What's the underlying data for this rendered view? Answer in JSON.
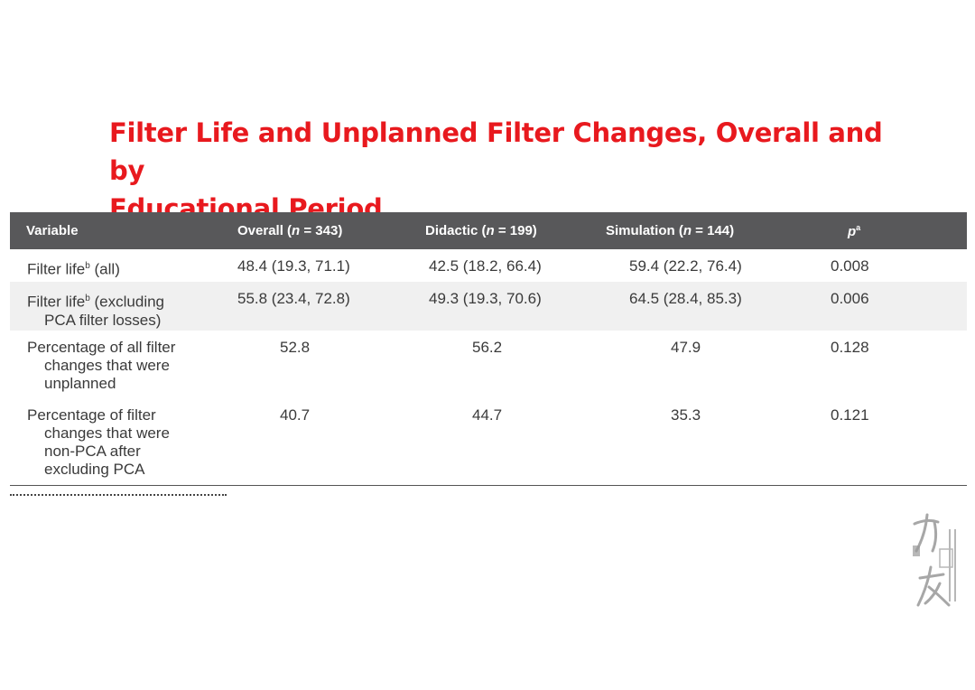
{
  "title": {
    "line1": "Filter Life and Unplanned Filter Changes, Overall and by",
    "line2": "Educational Period"
  },
  "table": {
    "headers": {
      "variable": "Variable",
      "overall_label": "Overall (",
      "overall_n": "n",
      "overall_val": " = 343)",
      "didactic_label": "Didactic (",
      "didactic_n": "n",
      "didactic_val": " = 199)",
      "simulation_label": "Simulation (",
      "simulation_n": "n",
      "simulation_val": " = 144)",
      "p": "p",
      "p_sup": "a"
    },
    "rows": [
      {
        "variable_line1": "Filter life",
        "variable_sup": "b",
        "variable_rest1": " (all)",
        "variable_line2": "",
        "variable_line3": "",
        "variable_line4": "",
        "overall": "48.4 (19.3, 71.1)",
        "didactic": "42.5 (18.2, 66.4)",
        "simulation": "59.4 (22.2, 76.4)",
        "p": "0.008"
      },
      {
        "variable_line1": "Filter life",
        "variable_sup": "b",
        "variable_rest1": " (excluding",
        "variable_line2": "PCA filter losses)",
        "variable_line3": "",
        "variable_line4": "",
        "overall": "55.8 (23.4, 72.8)",
        "didactic": "49.3 (19.3, 70.6)",
        "simulation": "64.5 (28.4, 85.3)",
        "p": "0.006"
      },
      {
        "variable_line1": "Percentage of all filter",
        "variable_sup": "",
        "variable_rest1": "",
        "variable_line2": "changes that were",
        "variable_line3": "unplanned",
        "variable_line4": "",
        "overall": "52.8",
        "didactic": "56.2",
        "simulation": "47.9",
        "p": "0.128"
      },
      {
        "variable_line1": "Percentage of filter",
        "variable_sup": "",
        "variable_rest1": "",
        "variable_line2": "changes that were",
        "variable_line3": "non-PCA after",
        "variable_line4": "excluding PCA",
        "overall": "40.7",
        "didactic": "44.7",
        "simulation": "35.3",
        "p": "0.121"
      }
    ]
  },
  "colors": {
    "title": "#e8191e",
    "header_bg": "#58585a",
    "row_shade": "#f0f0f0"
  },
  "watermark": {
    "icon": "brush-calligraphy-seal-icon"
  }
}
